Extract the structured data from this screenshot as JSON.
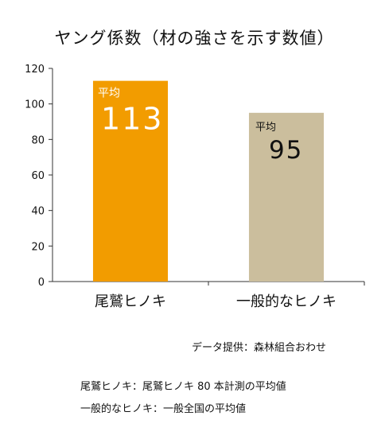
{
  "title": "ヤング係数（材の強さを示す数値）",
  "chart_data": {
    "type": "bar",
    "categories": [
      "尾鷲ヒノキ",
      "一般的なヒノキ"
    ],
    "values": [
      113,
      95
    ],
    "colors": [
      "#f29c00",
      "#cbbe9d"
    ],
    "value_prefix": "平均",
    "value_label_colors": [
      "#ffffff",
      "#111111"
    ],
    "ylim": [
      0,
      120
    ],
    "yticks": [
      0,
      20,
      40,
      60,
      80,
      100,
      120
    ],
    "ylabel": "",
    "xlabel": "",
    "grid": false
  },
  "credit": "データ提供：森林組合おわせ",
  "footnotes": [
    "尾鷲ヒノキ：尾鷲ヒノキ 80 本計測の平均値",
    "一般的なヒノキ：一般全国の平均値"
  ]
}
